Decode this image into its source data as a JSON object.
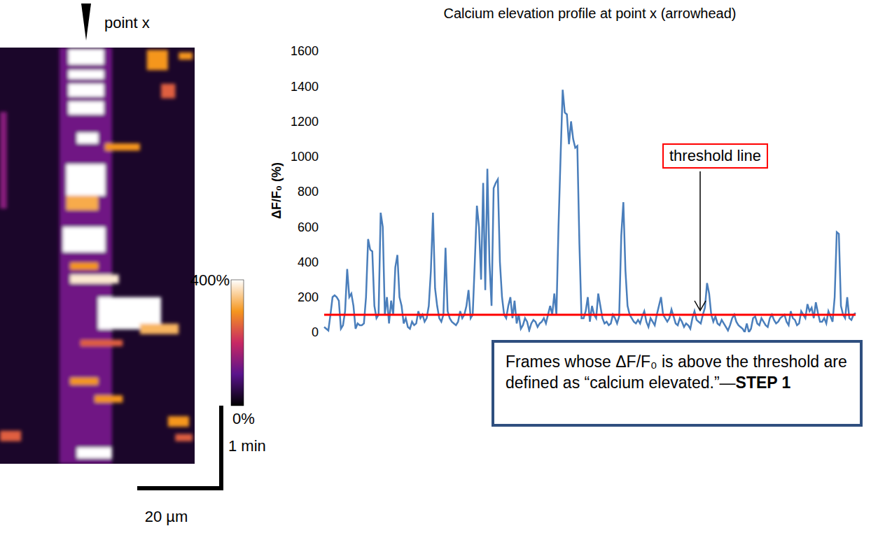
{
  "kymograph": {
    "point_x": {
      "label": "point x",
      "position": 20
    },
    "xlim": [
      0,
      45.2
    ],
    "tlim": [
      0,
      5.17
    ],
    "background": 30,
    "patches": [
      {
        "x0": 13.8,
        "x1": 26.0,
        "t0": 0,
        "t1": 5.17,
        "value": 120
      },
      {
        "x0": 0,
        "x1": 1.6,
        "t0": 0.8,
        "t1": 2.0,
        "value": 140
      },
      {
        "x0": 15.9,
        "x1": 24.1,
        "t0": 0.02,
        "t1": 0.21,
        "value": 450
      },
      {
        "x0": 15.9,
        "x1": 24.1,
        "t0": 0.28,
        "t1": 0.39,
        "value": 450
      },
      {
        "x0": 15.9,
        "x1": 24.1,
        "t0": 0.45,
        "t1": 0.61,
        "value": 450
      },
      {
        "x0": 15.9,
        "x1": 24.1,
        "t0": 0.67,
        "t1": 0.83,
        "value": 420
      },
      {
        "x0": 34.1,
        "x1": 39.0,
        "t0": 0.03,
        "t1": 0.28,
        "value": 300
      },
      {
        "x0": 41.5,
        "x1": 44.7,
        "t0": 0.06,
        "t1": 0.15,
        "value": 300
      },
      {
        "x0": 37.4,
        "x1": 40.7,
        "t0": 0.45,
        "t1": 0.63,
        "value": 250
      },
      {
        "x0": 17.9,
        "x1": 22.8,
        "t0": 1.06,
        "t1": 1.19,
        "value": 400
      },
      {
        "x0": 24.4,
        "x1": 32.5,
        "t0": 1.19,
        "t1": 1.28,
        "value": 300
      },
      {
        "x0": 15.4,
        "x1": 24.4,
        "t0": 1.45,
        "t1": 1.84,
        "value": 400
      },
      {
        "x0": 15.4,
        "x1": 22.8,
        "t0": 1.84,
        "t1": 2.02,
        "value": 320
      },
      {
        "x0": 14.6,
        "x1": 24.4,
        "t0": 2.23,
        "t1": 2.54,
        "value": 500
      },
      {
        "x0": 16.3,
        "x1": 22.8,
        "t0": 2.67,
        "t1": 2.76,
        "value": 300
      },
      {
        "x0": 16.3,
        "x1": 27.6,
        "t0": 2.82,
        "t1": 2.93,
        "value": 380
      },
      {
        "x0": 22.8,
        "x1": 37.4,
        "t0": 3.1,
        "t1": 3.5,
        "value": 450
      },
      {
        "x0": 32.5,
        "x1": 41.5,
        "t0": 3.43,
        "t1": 3.56,
        "value": 330
      },
      {
        "x0": 18.7,
        "x1": 28.5,
        "t0": 3.63,
        "t1": 3.71,
        "value": 250
      },
      {
        "x0": 16.3,
        "x1": 22.8,
        "t0": 4.1,
        "t1": 4.19,
        "value": 300
      },
      {
        "x0": 22.0,
        "x1": 28.5,
        "t0": 4.32,
        "t1": 4.41,
        "value": 300
      },
      {
        "x0": 39.0,
        "x1": 43.9,
        "t0": 4.58,
        "t1": 4.71,
        "value": 300
      },
      {
        "x0": 40.7,
        "x1": 44.7,
        "t0": 4.8,
        "t1": 4.89,
        "value": 250
      },
      {
        "x0": 0,
        "x1": 4.9,
        "t0": 4.76,
        "t1": 4.89,
        "value": 250
      },
      {
        "x0": 17.9,
        "x1": 26.0,
        "t0": 4.97,
        "t1": 5.1,
        "value": 450
      }
    ],
    "colorbar": {
      "range": [
        0,
        400
      ],
      "ticks": [
        {
          "value": 0,
          "label": "0%"
        },
        {
          "value": 400,
          "label": "400%"
        }
      ]
    },
    "scale_t": {
      "value": 1,
      "label": "1 min"
    },
    "scale_x": {
      "value": 20,
      "label": "20 µm"
    }
  },
  "chart_data": {
    "type": "line",
    "title": "Calcium elevation profile at point x (arrowhead)",
    "y_label": "ΔF/F₀ (%)",
    "color": "#4a7ebb",
    "ylim": [
      0,
      1600
    ],
    "yticks": [
      0,
      200,
      400,
      600,
      800,
      1000,
      1200,
      1400,
      1600
    ],
    "grid": false,
    "tick_labels": "y",
    "threshold": {
      "value": 100,
      "label": "threshold line",
      "color": "#ff0000"
    },
    "annotation": {
      "text": "Frames whose ΔF/F₀ is above the threshold are defined as “calcium elevated.”—",
      "bold": "STEP 1"
    },
    "values": [
      30,
      20,
      10,
      100,
      200,
      210,
      200,
      180,
      20,
      40,
      120,
      360,
      200,
      220,
      150,
      20,
      50,
      40,
      40,
      50,
      200,
      530,
      470,
      460,
      150,
      80,
      100,
      680,
      600,
      100,
      200,
      50,
      180,
      100,
      370,
      440,
      200,
      150,
      50,
      80,
      30,
      20,
      60,
      40,
      50,
      120,
      80,
      100,
      60,
      80,
      150,
      350,
      680,
      250,
      150,
      80,
      60,
      100,
      480,
      120,
      80,
      60,
      50,
      40,
      60,
      120,
      80,
      100,
      150,
      240,
      80,
      100,
      400,
      720,
      600,
      300,
      850,
      240,
      930,
      400,
      150,
      820,
      850,
      870,
      400,
      200,
      100,
      80,
      150,
      200,
      80,
      180,
      50,
      100,
      20,
      40,
      80,
      60,
      10,
      50,
      70,
      60,
      30,
      50,
      60,
      80,
      50,
      100,
      150,
      100,
      220,
      100,
      600,
      1000,
      1380,
      1250,
      1240,
      1070,
      1200,
      1100,
      1050,
      1060,
      500,
      80,
      80,
      120,
      200,
      60,
      150,
      100,
      80,
      220,
      150,
      80,
      50,
      60,
      40,
      50,
      100,
      80,
      50,
      90,
      550,
      740,
      350,
      150,
      100,
      80,
      60,
      50,
      70,
      50,
      90,
      120,
      60,
      30,
      80,
      60,
      40,
      100,
      150,
      200,
      100,
      80,
      60,
      80,
      130,
      90,
      50,
      40,
      80,
      60,
      30,
      50,
      40,
      20,
      80,
      120,
      70,
      60,
      50,
      100,
      140,
      280,
      220,
      100,
      60,
      90,
      50,
      40,
      70,
      50,
      30,
      10,
      40,
      80,
      100,
      60,
      40,
      30,
      20,
      0,
      50,
      0,
      20,
      80,
      90,
      50,
      40,
      80,
      60,
      40,
      30,
      80,
      100,
      70,
      50,
      60,
      80,
      90,
      100,
      60,
      40,
      120,
      80,
      70,
      40,
      50,
      120,
      100,
      80,
      160,
      120,
      140,
      80,
      170,
      110,
      60,
      60,
      80,
      50,
      120,
      90,
      60,
      200,
      570,
      560,
      150,
      100,
      80,
      200,
      80,
      70,
      100,
      110
    ]
  }
}
